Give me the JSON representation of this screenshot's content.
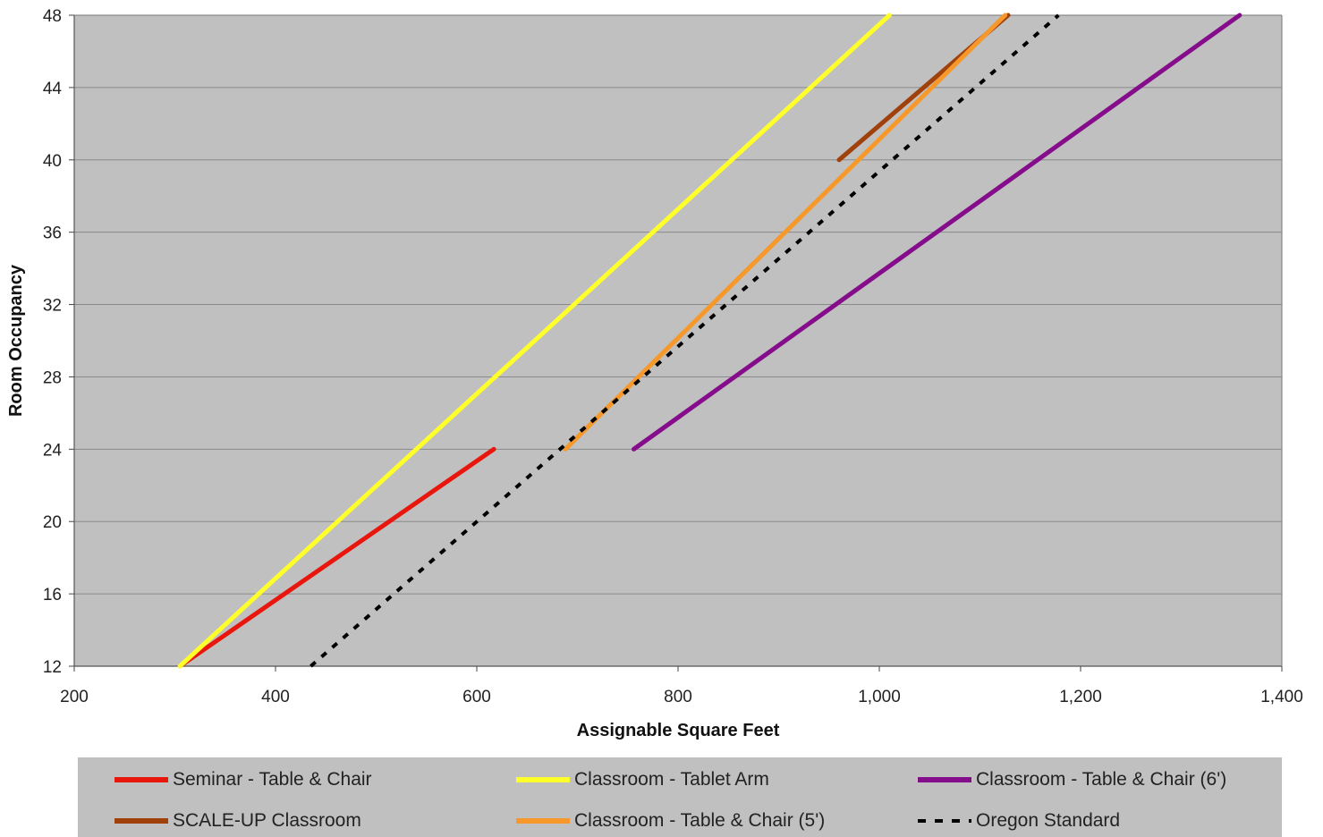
{
  "chart_data": {
    "type": "line",
    "title": "",
    "xlabel": "Assignable Square Feet",
    "ylabel": "Room Occupancy",
    "xlim": [
      200,
      1400
    ],
    "ylim": [
      12,
      48
    ],
    "xticks": [
      "200",
      "400",
      "600",
      "800",
      "1,000",
      "1,200",
      "1,400"
    ],
    "yticks": [
      "12",
      "16",
      "20",
      "24",
      "28",
      "32",
      "36",
      "40",
      "44",
      "48"
    ],
    "grid": "horizontal",
    "background": "#c0c0c0",
    "legend_position": "bottom",
    "series": [
      {
        "name": "Seminar - Table & Chair",
        "color": "#e8160c",
        "dash": "solid",
        "points": [
          [
            305,
            12
          ],
          [
            617,
            24
          ]
        ]
      },
      {
        "name": "Classroom - Tablet Arm",
        "color": "#ffff2a",
        "dash": "solid",
        "points": [
          [
            305,
            12
          ],
          [
            1010,
            48
          ]
        ]
      },
      {
        "name": "Classroom - Table & Chair (6')",
        "color": "#850c8a",
        "dash": "solid",
        "points": [
          [
            756,
            24
          ],
          [
            1358,
            48
          ]
        ]
      },
      {
        "name": "SCALE-UP Classroom",
        "color": "#a0400a",
        "dash": "solid",
        "points": [
          [
            960,
            40
          ],
          [
            1128,
            48
          ]
        ]
      },
      {
        "name": "Classroom - Table & Chair (5')",
        "color": "#f7982a",
        "dash": "solid",
        "points": [
          [
            688,
            24
          ],
          [
            1125,
            48
          ]
        ]
      },
      {
        "name": "Oregon Standard",
        "color": "#000000",
        "dash": "dashed",
        "points": [
          [
            435,
            12
          ],
          [
            1178,
            48
          ]
        ]
      }
    ]
  }
}
